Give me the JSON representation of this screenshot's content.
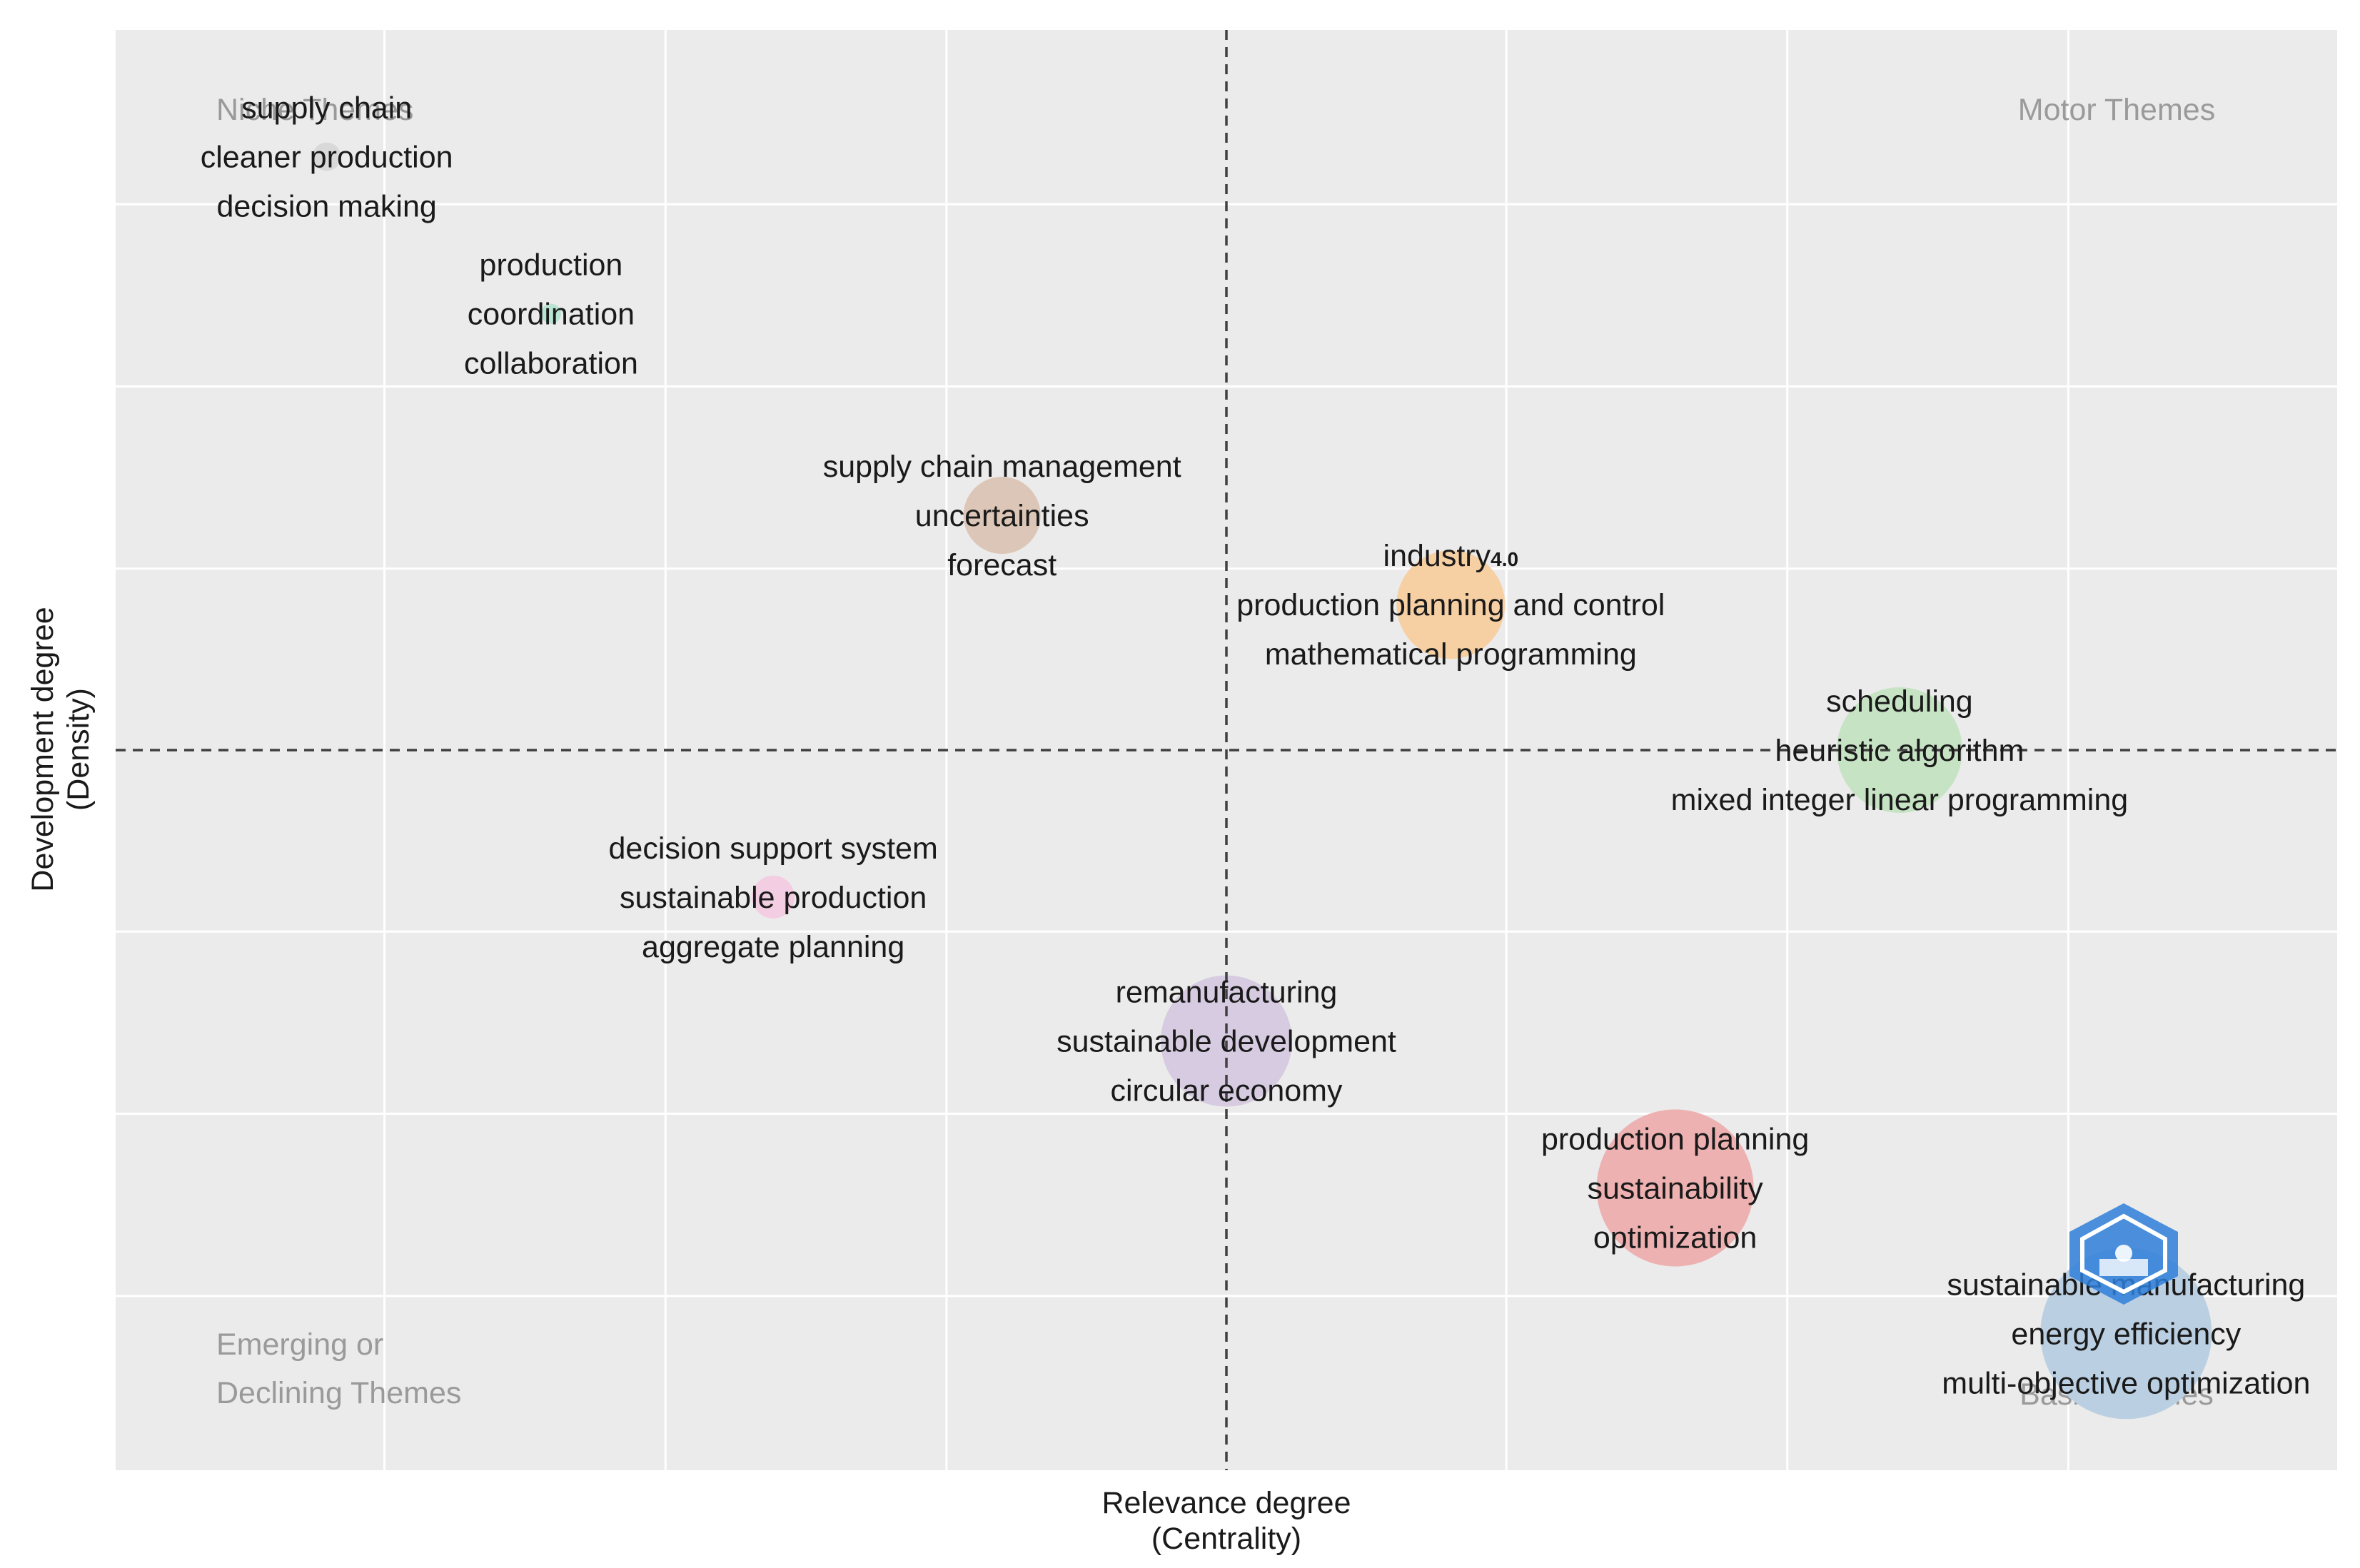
{
  "chart_data": {
    "type": "scatter",
    "title": "",
    "xlabel": "Relevance degree",
    "xlabel_sub": "(Centrality)",
    "ylabel": "Development degree",
    "ylabel_sub": "(Density)",
    "xlim": [
      0,
      100
    ],
    "ylim": [
      0,
      100
    ],
    "x_median": 50,
    "y_median": 50,
    "grid": true,
    "quadrants": {
      "top_left": [
        "Niche Themes"
      ],
      "top_right": [
        "Motor Themes"
      ],
      "bottom_left": [
        "Emerging or",
        "Declining Themes"
      ],
      "bottom_right": [
        "Basic Themes"
      ]
    },
    "clusters": [
      {
        "x": 9.5,
        "y": 91.2,
        "size": 1.0,
        "color": "#d9d9d9",
        "labels": [
          "supply chain",
          "cleaner production",
          "decision making"
        ]
      },
      {
        "x": 19.6,
        "y": 80.3,
        "size": 0.7,
        "color": "#b9e3d3",
        "labels": [
          "production",
          "coordination",
          "collaboration"
        ]
      },
      {
        "x": 39.9,
        "y": 66.3,
        "size": 2.7,
        "color": "#dcc6b7",
        "labels": [
          "supply chain management",
          "uncertainties",
          "forecast"
        ]
      },
      {
        "x": 60.1,
        "y": 60.1,
        "size": 3.8,
        "color": "#f6cfa3",
        "labels": [
          "industry",
          "production planning and control",
          "mathematical programming"
        ],
        "label_suffix": "4.0"
      },
      {
        "x": 80.3,
        "y": 50.0,
        "size": 4.4,
        "color": "#c6e3c4",
        "labels": [
          "scheduling",
          "heuristic algorithm",
          "mixed integer linear programming"
        ]
      },
      {
        "x": 29.6,
        "y": 39.8,
        "size": 1.5,
        "color": "#f3cde1",
        "labels": [
          "decision support system",
          "sustainable production",
          "aggregate planning"
        ]
      },
      {
        "x": 50.0,
        "y": 29.8,
        "size": 4.6,
        "color": "#d6cbe0",
        "labels": [
          "remanufacturing",
          "sustainable development",
          "circular economy"
        ]
      },
      {
        "x": 70.2,
        "y": 19.6,
        "size": 5.5,
        "color": "#eeb1b1",
        "labels": [
          "production planning",
          "sustainability",
          "optimization"
        ]
      },
      {
        "x": 90.5,
        "y": 9.5,
        "size": 6.0,
        "color": "#bbcfe2",
        "labels": [
          "sustainable manufacturing",
          "energy efficiency",
          "multi-objective optimization"
        ]
      }
    ]
  }
}
